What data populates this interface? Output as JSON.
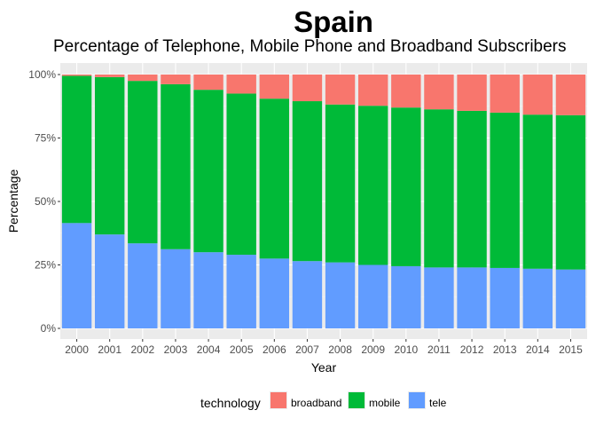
{
  "title": "Spain",
  "subtitle": "Percentage of Telephone, Mobile Phone and Broadband Subscribers",
  "legend": {
    "title": "technology",
    "items": [
      {
        "label": "broadband",
        "color": "#F8766D"
      },
      {
        "label": "mobile",
        "color": "#00BA38"
      },
      {
        "label": "tele",
        "color": "#619CFF"
      }
    ]
  },
  "chart_data": {
    "type": "bar",
    "stacked": true,
    "title": "Spain",
    "subtitle": "Percentage of Telephone, Mobile Phone and Broadband Subscribers",
    "xlabel": "Year",
    "ylabel": "Percentage",
    "ylim": [
      0,
      1
    ],
    "yticks": [
      0,
      0.25,
      0.5,
      0.75,
      1.0
    ],
    "ytick_labels": [
      "0%",
      "25%",
      "50%",
      "75%",
      "100%"
    ],
    "categories": [
      "2000",
      "2001",
      "2002",
      "2003",
      "2004",
      "2005",
      "2006",
      "2007",
      "2008",
      "2009",
      "2010",
      "2011",
      "2012",
      "2013",
      "2014",
      "2015"
    ],
    "series": [
      {
        "name": "tele",
        "color": "#619CFF",
        "values": [
          0.415,
          0.37,
          0.335,
          0.312,
          0.3,
          0.29,
          0.275,
          0.265,
          0.26,
          0.25,
          0.245,
          0.24,
          0.24,
          0.238,
          0.235,
          0.232
        ]
      },
      {
        "name": "mobile",
        "color": "#00BA38",
        "values": [
          0.58,
          0.62,
          0.64,
          0.65,
          0.64,
          0.635,
          0.63,
          0.63,
          0.622,
          0.627,
          0.625,
          0.623,
          0.617,
          0.612,
          0.607,
          0.608
        ]
      },
      {
        "name": "broadband",
        "color": "#F8766D",
        "values": [
          0.005,
          0.01,
          0.025,
          0.038,
          0.06,
          0.075,
          0.095,
          0.105,
          0.118,
          0.123,
          0.13,
          0.137,
          0.143,
          0.15,
          0.158,
          0.16
        ]
      }
    ],
    "grid": true,
    "legend_position": "bottom"
  }
}
